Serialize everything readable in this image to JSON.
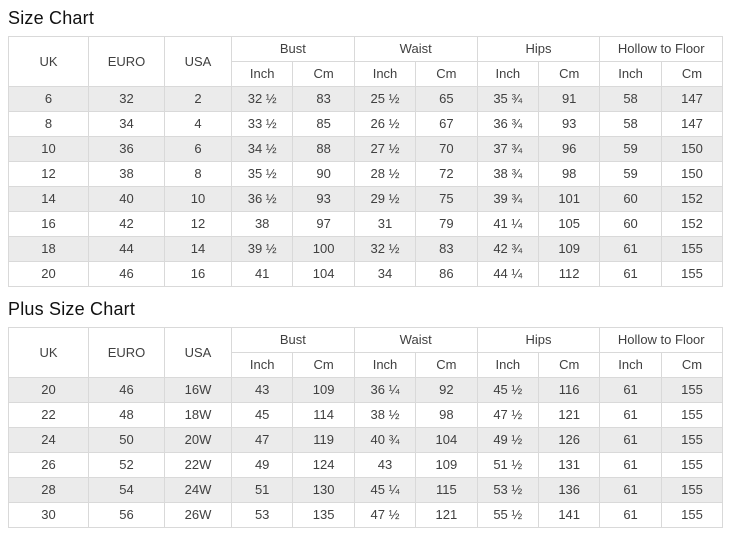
{
  "colors": {
    "stripe_row": "#ebebeb",
    "border": "#d9d9d9",
    "text": "#404040",
    "title_text": "#111111"
  },
  "chart_data": [
    {
      "type": "table",
      "title": "Size Chart",
      "base_columns": [
        "UK",
        "EURO",
        "USA"
      ],
      "column_groups": [
        "Bust",
        "Waist",
        "Hips",
        "Hollow to Floor"
      ],
      "sub_columns": [
        "Inch",
        "Cm"
      ],
      "rows": [
        [
          "6",
          "32",
          "2",
          "32 ½",
          "83",
          "25 ½",
          "65",
          "35 ¾",
          "91",
          "58",
          "147"
        ],
        [
          "8",
          "34",
          "4",
          "33 ½",
          "85",
          "26 ½",
          "67",
          "36 ¾",
          "93",
          "58",
          "147"
        ],
        [
          "10",
          "36",
          "6",
          "34 ½",
          "88",
          "27 ½",
          "70",
          "37 ¾",
          "96",
          "59",
          "150"
        ],
        [
          "12",
          "38",
          "8",
          "35 ½",
          "90",
          "28 ½",
          "72",
          "38 ¾",
          "98",
          "59",
          "150"
        ],
        [
          "14",
          "40",
          "10",
          "36 ½",
          "93",
          "29 ½",
          "75",
          "39 ¾",
          "101",
          "60",
          "152"
        ],
        [
          "16",
          "42",
          "12",
          "38",
          "97",
          "31",
          "79",
          "41 ¼",
          "105",
          "60",
          "152"
        ],
        [
          "18",
          "44",
          "14",
          "39 ½",
          "100",
          "32 ½",
          "83",
          "42 ¾",
          "109",
          "61",
          "155"
        ],
        [
          "20",
          "46",
          "16",
          "41",
          "104",
          "34",
          "86",
          "44 ¼",
          "112",
          "61",
          "155"
        ]
      ]
    },
    {
      "type": "table",
      "title": "Plus Size Chart",
      "base_columns": [
        "UK",
        "EURO",
        "USA"
      ],
      "column_groups": [
        "Bust",
        "Waist",
        "Hips",
        "Hollow to Floor"
      ],
      "sub_columns": [
        "Inch",
        "Cm"
      ],
      "rows": [
        [
          "20",
          "46",
          "16W",
          "43",
          "109",
          "36 ¼",
          "92",
          "45 ½",
          "116",
          "61",
          "155"
        ],
        [
          "22",
          "48",
          "18W",
          "45",
          "114",
          "38 ½",
          "98",
          "47 ½",
          "121",
          "61",
          "155"
        ],
        [
          "24",
          "50",
          "20W",
          "47",
          "119",
          "40 ¾",
          "104",
          "49 ½",
          "126",
          "61",
          "155"
        ],
        [
          "26",
          "52",
          "22W",
          "49",
          "124",
          "43",
          "109",
          "51 ½",
          "131",
          "61",
          "155"
        ],
        [
          "28",
          "54",
          "24W",
          "51",
          "130",
          "45 ¼",
          "115",
          "53 ½",
          "136",
          "61",
          "155"
        ],
        [
          "30",
          "56",
          "26W",
          "53",
          "135",
          "47 ½",
          "121",
          "55 ½",
          "141",
          "61",
          "155"
        ]
      ]
    }
  ]
}
